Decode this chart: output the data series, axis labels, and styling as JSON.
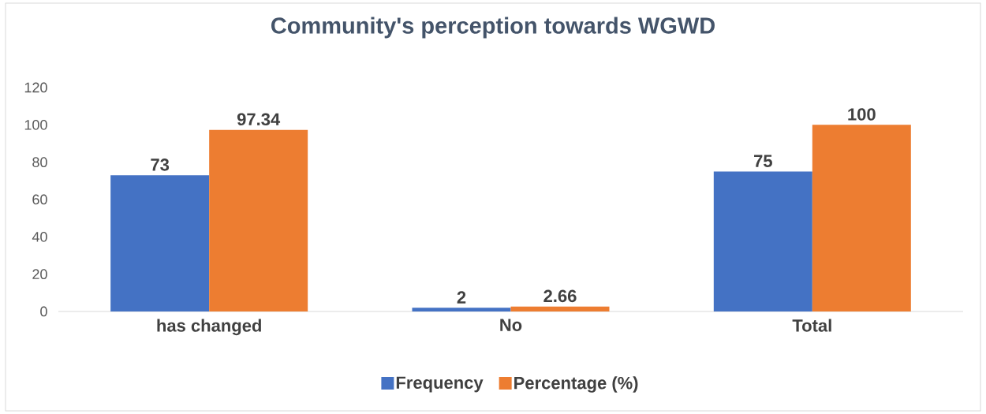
{
  "chart_data": {
    "type": "bar",
    "title": "Community's perception towards WGWD",
    "categories": [
      "has changed",
      "No",
      "Total"
    ],
    "series": [
      {
        "name": "Frequency",
        "color": "#4472c4",
        "values": [
          73,
          2,
          75
        ]
      },
      {
        "name": "Percentage (%)",
        "color": "#ed7d31",
        "values": [
          97.34,
          2.66,
          100
        ]
      }
    ],
    "ylim": [
      0,
      120
    ],
    "yticks": [
      0,
      20,
      40,
      60,
      80,
      100,
      120
    ],
    "grid": false,
    "legend": "bottom",
    "data_labels": true
  }
}
